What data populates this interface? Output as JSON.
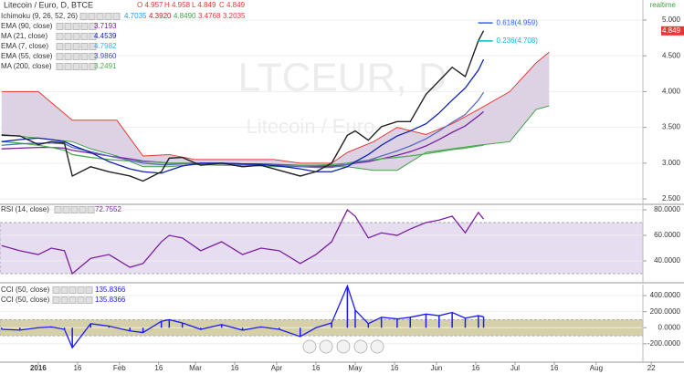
{
  "chart_data": [
    {
      "type": "line",
      "title": "Litecoin / Euro, D, BTCE",
      "ohlc": [
        "O 4.957",
        "H 4.958",
        "L 4.849",
        "C 4.849"
      ],
      "realtime": "realtime",
      "watermark": "LTCEUR, D",
      "watermark_sub": "Litecoin / Euro",
      "indicators": [
        {
          "label": "Ichimoku (9, 26, 52, 26)",
          "values": [
            "4.7035",
            "4.3920",
            "4.8490",
            "3.4768",
            "3.2035"
          ],
          "colors": [
            "#2196f3",
            "#b71c1c",
            "#43a047",
            "#e53935",
            "#e53935"
          ]
        },
        {
          "label": "EMA (90, close)",
          "values": [
            "3.7193"
          ],
          "colors": [
            "#7b1fa2"
          ]
        },
        {
          "label": "MA (21, close)",
          "values": [
            "4.4539"
          ],
          "colors": [
            "#0d1fb5"
          ]
        },
        {
          "label": "EMA (7, close)",
          "values": [
            "4.7982"
          ],
          "colors": [
            "#29b6f6"
          ]
        },
        {
          "label": "EMA (55, close)",
          "values": [
            "3.9860"
          ],
          "colors": [
            "#3f51b5"
          ]
        },
        {
          "label": "MA (200, close)",
          "values": [
            "3.2491"
          ],
          "colors": [
            "#4caf50"
          ]
        }
      ],
      "xlim": [
        -14.6,
        246.5
      ],
      "ylim": [
        2.45,
        5.28
      ],
      "yticks": [
        {
          "value": 2.5,
          "label": "2.500"
        },
        {
          "value": 3,
          "label": "3.000"
        },
        {
          "value": 3.5,
          "label": "3.500"
        },
        {
          "value": 4,
          "label": "4.000"
        },
        {
          "value": 4.5,
          "label": "4.500"
        },
        {
          "value": 5,
          "label": "5.000"
        }
      ],
      "x": [
        -14,
        -7,
        0,
        5,
        10,
        13,
        20,
        27,
        35,
        40,
        47,
        50,
        55,
        62,
        70,
        78,
        85,
        92,
        100,
        106,
        112,
        118,
        121,
        126,
        131,
        137,
        142,
        148,
        153,
        158,
        163,
        168,
        170
      ],
      "series": [
        {
          "color": "#7b1fa2",
          "values": [
            3.2,
            3.21,
            3.22,
            3.22,
            3.21,
            3.18,
            3.14,
            3.1,
            3.06,
            3.03,
            3.01,
            3.0,
            3.0,
            3.0,
            3.0,
            2.99,
            2.99,
            2.98,
            2.97,
            2.96,
            2.96,
            2.98,
            3.0,
            3.02,
            3.06,
            3.11,
            3.16,
            3.24,
            3.33,
            3.43,
            3.52,
            3.66,
            3.72
          ]
        },
        {
          "color": "#4caf50",
          "values": [
            3.3,
            3.28,
            3.25,
            3.22,
            3.18,
            3.12,
            3.08,
            3.05,
            3.03,
            3.02,
            3.01,
            3.0,
            3.0,
            2.99,
            2.99,
            2.98,
            2.98,
            2.97,
            2.97,
            2.97,
            2.98,
            3.0,
            3.02,
            3.04,
            3.06,
            3.08,
            3.1,
            3.13,
            3.16,
            3.19,
            3.21,
            3.24,
            3.25
          ]
        },
        {
          "color": "#5c6bc0",
          "values": [
            3.25,
            3.27,
            3.28,
            3.28,
            3.27,
            3.22,
            3.16,
            3.1,
            3.04,
            3.0,
            2.98,
            2.98,
            2.99,
            2.99,
            2.99,
            2.98,
            2.98,
            2.97,
            2.95,
            2.94,
            2.94,
            2.98,
            3.01,
            3.04,
            3.1,
            3.17,
            3.24,
            3.34,
            3.45,
            3.57,
            3.68,
            3.88,
            3.99
          ]
        },
        {
          "color": "#0d1fb5",
          "values": [
            3.3,
            3.33,
            3.35,
            3.33,
            3.3,
            3.25,
            3.15,
            3.02,
            2.92,
            2.88,
            2.86,
            2.9,
            2.96,
            3.0,
            3.0,
            2.99,
            2.98,
            2.96,
            2.92,
            2.88,
            2.88,
            2.95,
            3.02,
            3.12,
            3.25,
            3.38,
            3.45,
            3.55,
            3.7,
            3.88,
            4.05,
            4.3,
            4.45
          ]
        },
        {
          "color": "#222222",
          "values": [
            3.39,
            3.38,
            3.26,
            3.3,
            3.28,
            2.82,
            2.95,
            2.88,
            2.82,
            2.75,
            2.88,
            3.07,
            3.08,
            2.97,
            3.0,
            2.95,
            2.97,
            2.9,
            2.82,
            2.88,
            3.0,
            3.39,
            3.45,
            3.32,
            3.51,
            3.58,
            3.58,
            3.96,
            4.15,
            4.34,
            4.21,
            4.71,
            4.85
          ]
        }
      ],
      "cloud": {
        "x": [
          -14,
          0,
          13,
          20,
          30,
          40,
          50,
          60,
          70,
          80,
          90,
          100,
          106,
          112,
          118,
          128,
          137,
          148,
          158,
          168,
          180,
          190,
          195
        ],
        "upper": [
          4.0,
          4.0,
          3.6,
          3.6,
          3.6,
          3.1,
          3.12,
          3.05,
          3.05,
          3.05,
          3.05,
          3.0,
          3.0,
          3.0,
          3.15,
          3.3,
          3.5,
          3.4,
          3.55,
          3.75,
          4.0,
          4.4,
          4.55
        ],
        "lower": [
          3.4,
          3.35,
          3.3,
          3.2,
          3.1,
          2.95,
          2.95,
          2.98,
          2.97,
          2.97,
          2.95,
          2.95,
          2.95,
          2.95,
          2.95,
          2.9,
          2.9,
          3.15,
          3.2,
          3.25,
          3.3,
          3.75,
          3.8
        ],
        "fill": "#d8cde0",
        "upper_color": "#e53935",
        "lower_color": "#43a047"
      },
      "annotations": [
        {
          "label": "0.618(4.959)",
          "value": 4.959,
          "color": "#2962ff"
        },
        {
          "label": "0.236(4.708)",
          "value": 4.708,
          "color": "#00bcd4"
        }
      ],
      "last_price": {
        "value": 4.849,
        "label": "4.849",
        "color": "#e53935"
      }
    },
    {
      "type": "line",
      "title": "RSI (14, close)",
      "last_label": "72.7552",
      "xlim": [
        -14.6,
        246.5
      ],
      "ylim": [
        24.3,
        83.6
      ],
      "yticks": [
        {
          "value": 40,
          "label": "40.0000"
        },
        {
          "value": 60,
          "label": "60.0000"
        },
        {
          "value": 80,
          "label": "80.0000"
        }
      ],
      "band": [
        30,
        70
      ],
      "band_color": "#e6def0",
      "x": [
        -14,
        -7,
        0,
        5,
        10,
        13,
        20,
        27,
        35,
        40,
        47,
        50,
        55,
        62,
        70,
        78,
        85,
        92,
        100,
        106,
        112,
        118,
        121,
        126,
        131,
        137,
        142,
        148,
        153,
        158,
        163,
        168,
        170
      ],
      "series": [
        {
          "color": "#7b1fa2",
          "values": [
            52,
            48,
            45,
            50,
            48,
            30,
            42,
            45,
            35,
            38,
            55,
            60,
            58,
            48,
            55,
            45,
            50,
            48,
            38,
            45,
            55,
            80,
            75,
            58,
            62,
            60,
            65,
            70,
            72,
            75,
            62,
            78,
            72.7552
          ]
        }
      ]
    },
    {
      "type": "line",
      "titles": [
        "CCI (50, close)",
        "CCI (50, close)"
      ],
      "last_labels": [
        "135.8366",
        "135.8366"
      ],
      "xlim": [
        -14.6,
        246.5
      ],
      "ylim": [
        -406,
        537
      ],
      "yticks": [
        {
          "value": -200,
          "label": "-200.0000"
        },
        {
          "value": 0,
          "label": "0.0000"
        },
        {
          "value": 200,
          "label": "200.0000"
        },
        {
          "value": 400,
          "label": "400.0000"
        }
      ],
      "band": [
        -100,
        100
      ],
      "band_color": "#d6d0a8",
      "xticks": [
        {
          "value": 0,
          "label": "2016"
        },
        {
          "value": 15,
          "label": "16"
        },
        {
          "value": 31,
          "label": "Feb"
        },
        {
          "value": 46,
          "label": "16"
        },
        {
          "value": 60,
          "label": "Mar"
        },
        {
          "value": 75,
          "label": "16"
        },
        {
          "value": 91,
          "label": "Apr"
        },
        {
          "value": 106,
          "label": "16"
        },
        {
          "value": 121,
          "label": "May"
        },
        {
          "value": 136,
          "label": "16"
        },
        {
          "value": 152,
          "label": "Jun"
        },
        {
          "value": 167,
          "label": "16"
        },
        {
          "value": 182,
          "label": "Jul"
        },
        {
          "value": 197,
          "label": "16"
        },
        {
          "value": 213,
          "label": "Aug"
        },
        {
          "value": 234,
          "label": "22"
        }
      ],
      "x": [
        -14,
        -7,
        0,
        5,
        10,
        13,
        20,
        27,
        35,
        40,
        47,
        50,
        55,
        62,
        70,
        78,
        85,
        92,
        100,
        106,
        112,
        118,
        121,
        126,
        131,
        137,
        142,
        148,
        153,
        158,
        163,
        168,
        170
      ],
      "series": [
        {
          "color": "#1a1aff",
          "values": [
            -20,
            -30,
            0,
            10,
            -20,
            -250,
            50,
            20,
            -40,
            -60,
            80,
            100,
            60,
            -20,
            40,
            -30,
            10,
            -20,
            -110,
            0,
            60,
            520,
            220,
            50,
            130,
            110,
            130,
            170,
            150,
            190,
            120,
            150,
            135.8366
          ]
        }
      ]
    }
  ]
}
